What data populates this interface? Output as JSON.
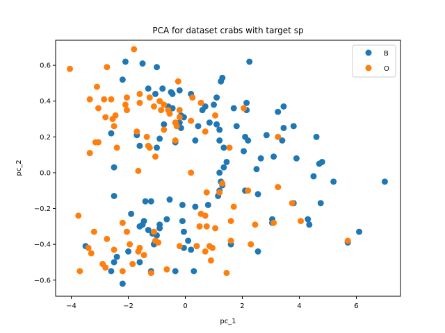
{
  "chart_data": {
    "type": "scatter",
    "title": "PCA for dataset crabs with target sp",
    "xlabel": "pc_1",
    "ylabel": "pc_2",
    "xlim": [
      -4.55,
      7.55
    ],
    "ylim": [
      -0.69,
      0.74
    ],
    "xticks": [
      -4,
      -2,
      0,
      2,
      4,
      6
    ],
    "yticks": [
      -0.6,
      -0.4,
      -0.2,
      0.0,
      0.2,
      0.4,
      0.6
    ],
    "ytick_labels": [
      "−0.6",
      "−0.4",
      "−0.2",
      "0.0",
      "0.2",
      "0.4",
      "0.6"
    ],
    "xtick_labels": [
      "−4",
      "−2",
      "0",
      "2",
      "4",
      "6"
    ],
    "legend_position": "upper right",
    "grid": false,
    "series": [
      {
        "name": "B",
        "color": "#1f77b4",
        "points": [
          [
            -2.1,
            0.62
          ],
          [
            -1.5,
            0.61
          ],
          [
            -1.0,
            0.59
          ],
          [
            -2.2,
            0.52
          ],
          [
            1.3,
            0.53
          ],
          [
            1.25,
            0.51
          ],
          [
            2.25,
            0.62
          ],
          [
            -1.3,
            0.47
          ],
          [
            -1.05,
            0.44
          ],
          [
            -0.8,
            0.47
          ],
          [
            -0.5,
            0.45
          ],
          [
            -0.45,
            0.44
          ],
          [
            -0.2,
            0.46
          ],
          [
            0.2,
            0.44
          ],
          [
            1.1,
            0.42
          ],
          [
            1.0,
            0.38
          ],
          [
            0.7,
            0.37
          ],
          [
            0.6,
            0.35
          ],
          [
            2.15,
            0.39
          ],
          [
            2.15,
            0.35
          ],
          [
            1.7,
            0.36
          ],
          [
            3.45,
            0.37
          ],
          [
            3.25,
            0.34
          ],
          [
            -0.6,
            0.37
          ],
          [
            -0.45,
            0.36
          ],
          [
            -0.15,
            0.32
          ],
          [
            -0.05,
            0.31
          ],
          [
            -0.75,
            0.27
          ],
          [
            -0.2,
            0.28
          ],
          [
            -0.15,
            0.25
          ],
          [
            0.45,
            0.26
          ],
          [
            0.85,
            0.28
          ],
          [
            1.1,
            0.27
          ],
          [
            1.8,
            0.26
          ],
          [
            3.45,
            0.25
          ],
          [
            3.8,
            0.26
          ],
          [
            -2.6,
            0.22
          ],
          [
            -1.7,
            0.21
          ],
          [
            -0.9,
            0.19
          ],
          [
            -0.35,
            0.17
          ],
          [
            0.35,
            0.18
          ],
          [
            1.2,
            0.24
          ],
          [
            1.2,
            0.18
          ],
          [
            2.1,
            0.2
          ],
          [
            2.2,
            0.18
          ],
          [
            2.85,
            0.21
          ],
          [
            3.4,
            0.18
          ],
          [
            -1.6,
            0.15
          ],
          [
            -1.0,
            0.14
          ],
          [
            1.35,
            0.14
          ],
          [
            2.05,
            0.12
          ],
          [
            2.65,
            0.08
          ],
          [
            3.1,
            0.09
          ],
          [
            3.9,
            0.08
          ],
          [
            1.45,
            0.06
          ],
          [
            1.35,
            0.03
          ],
          [
            1.2,
            0.0
          ],
          [
            2.5,
            0.02
          ],
          [
            4.7,
            0.05
          ],
          [
            4.8,
            0.06
          ],
          [
            4.6,
            0.2
          ],
          [
            5.2,
            -0.05
          ],
          [
            7.0,
            -0.05
          ],
          [
            4.5,
            -0.02
          ],
          [
            -2.5,
            0.03
          ],
          [
            1.25,
            -0.05
          ],
          [
            1.3,
            -0.07
          ],
          [
            2.1,
            -0.1
          ],
          [
            1.2,
            -0.1
          ],
          [
            1.15,
            -0.13
          ],
          [
            2.55,
            -0.12
          ],
          [
            -2.5,
            -0.13
          ],
          [
            -1.4,
            -0.16
          ],
          [
            -1.2,
            -0.16
          ],
          [
            -0.55,
            -0.15
          ],
          [
            -0.1,
            -0.18
          ],
          [
            0.35,
            -0.19
          ],
          [
            0.8,
            -0.18
          ],
          [
            3.8,
            -0.17
          ],
          [
            4.75,
            -0.17
          ],
          [
            -1.9,
            -0.23
          ],
          [
            -1.6,
            -0.3
          ],
          [
            -1.45,
            -0.27
          ],
          [
            -1.5,
            -0.29
          ],
          [
            -1.3,
            -0.32
          ],
          [
            -1.15,
            -0.34
          ],
          [
            -0.9,
            -0.31
          ],
          [
            -0.9,
            -0.29
          ],
          [
            -0.65,
            -0.26
          ],
          [
            -0.1,
            -0.27
          ],
          [
            -1.0,
            -0.35
          ],
          [
            -0.05,
            -0.33
          ],
          [
            3.05,
            -0.26
          ],
          [
            3.05,
            -0.28
          ],
          [
            4.3,
            -0.26
          ],
          [
            4.35,
            -0.29
          ],
          [
            6.1,
            -0.33
          ],
          [
            -3.5,
            -0.41
          ],
          [
            -2.0,
            -0.44
          ],
          [
            -1.1,
            -0.4
          ],
          [
            0.1,
            -0.38
          ],
          [
            1.6,
            -0.4
          ],
          [
            -2.5,
            -0.5
          ],
          [
            -2.4,
            -0.47
          ],
          [
            -1.6,
            -0.5
          ],
          [
            -0.05,
            -0.42
          ],
          [
            0.2,
            -0.43
          ],
          [
            0.4,
            -0.41
          ],
          [
            2.55,
            -0.44
          ],
          [
            -2.6,
            -0.55
          ],
          [
            -1.2,
            -0.55
          ],
          [
            -0.35,
            -0.55
          ],
          [
            0.3,
            -0.55
          ],
          [
            -2.2,
            -0.62
          ],
          [
            5.7,
            -0.39
          ]
        ]
      },
      {
        "name": "O",
        "color": "#ff7f0e",
        "points": [
          [
            -4.05,
            0.58
          ],
          [
            -1.8,
            0.69
          ],
          [
            -2.75,
            0.59
          ],
          [
            -3.1,
            0.48
          ],
          [
            -0.25,
            0.51
          ],
          [
            -2.85,
            0.41
          ],
          [
            -2.6,
            0.41
          ],
          [
            -2.05,
            0.42
          ],
          [
            -1.6,
            0.44
          ],
          [
            -1.25,
            0.42
          ],
          [
            -0.9,
            0.4
          ],
          [
            -0.75,
            0.38
          ],
          [
            -0.6,
            0.35
          ],
          [
            -0.55,
            0.33
          ],
          [
            -0.2,
            0.35
          ],
          [
            0.25,
            0.42
          ],
          [
            0.55,
            0.39
          ],
          [
            -3.35,
            0.41
          ],
          [
            -3.05,
            0.36
          ],
          [
            -2.8,
            0.31
          ],
          [
            -2.45,
            0.32
          ],
          [
            -2.55,
            0.3
          ],
          [
            -2.1,
            0.38
          ],
          [
            -2.05,
            0.35
          ],
          [
            -1.6,
            0.39
          ],
          [
            -1.1,
            0.37
          ],
          [
            -0.85,
            0.35
          ],
          [
            -0.2,
            0.31
          ],
          [
            0.2,
            0.29
          ],
          [
            1.05,
            0.32
          ],
          [
            2.05,
            0.36
          ],
          [
            -2.5,
            0.26
          ],
          [
            -0.35,
            0.28
          ],
          [
            -1.7,
            0.23
          ],
          [
            -1.35,
            0.2
          ],
          [
            -0.75,
            0.24
          ],
          [
            -0.3,
            0.26
          ],
          [
            0.7,
            0.23
          ],
          [
            -3.15,
            0.17
          ],
          [
            -3.05,
            0.17
          ],
          [
            -1.3,
            0.15
          ],
          [
            -1.25,
            0.14
          ],
          [
            -0.35,
            0.18
          ],
          [
            -2.4,
            0.14
          ],
          [
            -3.35,
            0.11
          ],
          [
            -1.05,
            0.09
          ],
          [
            1.55,
            0.14
          ],
          [
            3.25,
            0.2
          ],
          [
            -1.65,
            0.01
          ],
          [
            0.2,
            0.0
          ],
          [
            1.3,
            -0.06
          ],
          [
            0.75,
            -0.11
          ],
          [
            1.2,
            -0.11
          ],
          [
            2.2,
            -0.1
          ],
          [
            3.25,
            -0.08
          ],
          [
            1.7,
            -0.19
          ],
          [
            3.75,
            -0.17
          ],
          [
            -3.75,
            -0.24
          ],
          [
            0.55,
            -0.23
          ],
          [
            0.7,
            -0.24
          ],
          [
            1.6,
            -0.27
          ],
          [
            -2.2,
            -0.28
          ],
          [
            0.5,
            -0.3
          ],
          [
            0.75,
            -0.3
          ],
          [
            1.05,
            -0.31
          ],
          [
            2.45,
            -0.29
          ],
          [
            3.1,
            -0.28
          ],
          [
            4.05,
            -0.27
          ],
          [
            -3.2,
            -0.33
          ],
          [
            -2.05,
            -0.33
          ],
          [
            -1.1,
            -0.33
          ],
          [
            -2.75,
            -0.37
          ],
          [
            -1.95,
            -0.4
          ],
          [
            -1.6,
            -0.42
          ],
          [
            -1.45,
            -0.46
          ],
          [
            -1.05,
            -0.38
          ],
          [
            -0.95,
            -0.39
          ],
          [
            -1.65,
            -0.44
          ],
          [
            -0.2,
            -0.41
          ],
          [
            0.4,
            -0.41
          ],
          [
            0.85,
            -0.41
          ],
          [
            0.95,
            -0.42
          ],
          [
            1.6,
            -0.38
          ],
          [
            2.3,
            -0.4
          ],
          [
            -3.4,
            -0.42
          ],
          [
            -3.3,
            -0.45
          ],
          [
            -2.5,
            -0.43
          ],
          [
            -2.9,
            -0.51
          ],
          [
            -2.8,
            -0.53
          ],
          [
            -2.2,
            -0.55
          ],
          [
            -1.85,
            -0.51
          ],
          [
            -1.2,
            -0.56
          ],
          [
            -0.65,
            -0.54
          ],
          [
            0.9,
            -0.49
          ],
          [
            0.7,
            -0.44
          ],
          [
            -3.7,
            -0.55
          ],
          [
            1.45,
            -0.56
          ],
          [
            5.7,
            -0.38
          ]
        ]
      }
    ]
  }
}
